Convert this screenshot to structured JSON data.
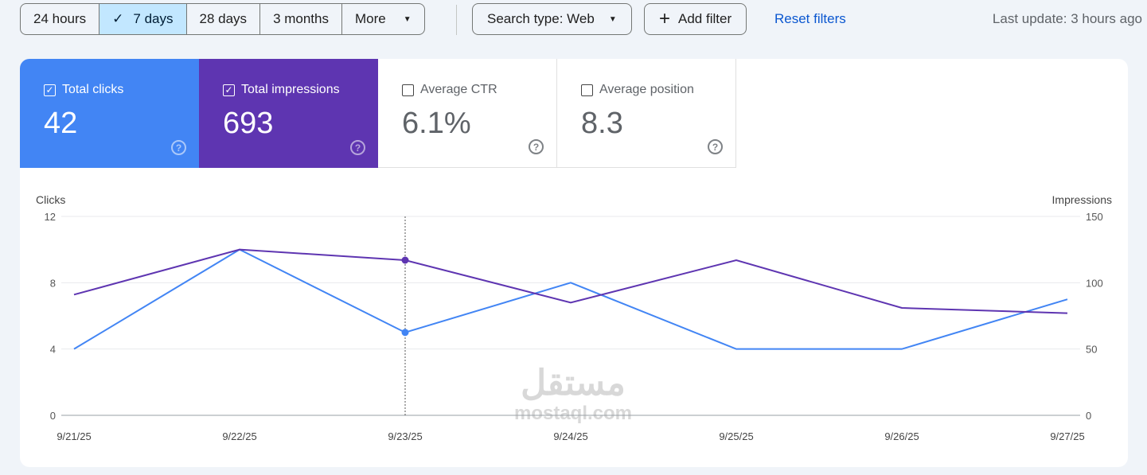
{
  "toolbar": {
    "ranges": [
      "24 hours",
      "7 days",
      "28 days",
      "3 months",
      "More"
    ],
    "selected_range": "7 days",
    "search_type": "Search type: Web",
    "add_filter": "Add filter",
    "reset": "Reset filters",
    "last_update": "Last update: 3 hours ago"
  },
  "metrics": [
    {
      "label": "Total clicks",
      "value": "42",
      "checked": true,
      "color": "#4285f4"
    },
    {
      "label": "Total impressions",
      "value": "693",
      "checked": true,
      "color": "#5e35b1"
    },
    {
      "label": "Average CTR",
      "value": "6.1%",
      "checked": false
    },
    {
      "label": "Average position",
      "value": "8.3",
      "checked": false
    }
  ],
  "watermark": {
    "arabic": "مستقل",
    "latin": "mostaql.com"
  },
  "chart_data": {
    "type": "line",
    "x": [
      "9/21/25",
      "9/22/25",
      "9/23/25",
      "9/24/25",
      "9/25/25",
      "9/26/25",
      "9/27/25"
    ],
    "ylabel": "Clicks",
    "y2label": "Impressions",
    "ylim": [
      0,
      12
    ],
    "y2lim": [
      0,
      150
    ],
    "yticks": [
      "0",
      "4",
      "8",
      "12"
    ],
    "y2ticks": [
      "0",
      "50",
      "100",
      "150"
    ],
    "series": [
      {
        "name": "Clicks",
        "axis": "left",
        "color": "#4285f4",
        "values": [
          4,
          10,
          5,
          8,
          4,
          4,
          7
        ]
      },
      {
        "name": "Impressions",
        "axis": "right",
        "color": "#5e35b1",
        "values": [
          91,
          125,
          117,
          85,
          117,
          81,
          77
        ]
      }
    ],
    "hover_index": 2
  }
}
